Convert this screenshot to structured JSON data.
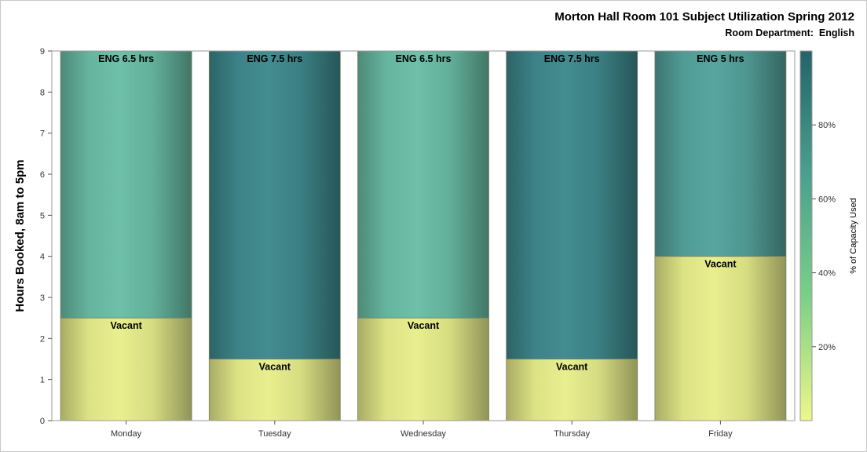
{
  "chart_data": {
    "type": "bar",
    "stacked": true,
    "title": "Morton Hall Room 101 Subject Utilization Spring 2012",
    "subtitle": "Room Department:  English",
    "ylabel": "Hours Booked, 8am to 5pm",
    "xlabel": "",
    "ylim": [
      0,
      9
    ],
    "yticks": [
      "0",
      "1",
      "2",
      "3",
      "4",
      "5",
      "6",
      "7",
      "8",
      "9"
    ],
    "grid": false,
    "categories": [
      "Monday",
      "Tuesday",
      "Wednesday",
      "Thursday",
      "Friday"
    ],
    "series": [
      {
        "values": [
          2.5,
          1.5,
          2.5,
          1.5,
          4
        ],
        "labels": [
          "Vacant",
          "Vacant",
          "Vacant",
          "Vacant",
          "Vacant"
        ]
      },
      {
        "values": [
          6.5,
          7.5,
          6.5,
          7.5,
          5
        ],
        "labels": [
          "ENG 6.5 hrs",
          "ENG 7.5 hrs",
          "ENG 6.5 hrs",
          "ENG 7.5 hrs",
          "ENG 5 hrs"
        ]
      }
    ],
    "colorbar": {
      "label": "% of Capacity Used",
      "ticks": [
        "20%",
        "40%",
        "60%",
        "80%"
      ],
      "tick_values": [
        20,
        40,
        60,
        80
      ],
      "range": [
        0,
        100
      ],
      "colors": [
        "#eef78a",
        "#7ccf88",
        "#4aa08e",
        "#26636a"
      ]
    },
    "segment_colors": {
      "vacant": "#e9ef8c",
      "eng_65": "#6bbfa6",
      "eng_75": "#3f8a8e",
      "eng_5": "#55a39d"
    }
  }
}
